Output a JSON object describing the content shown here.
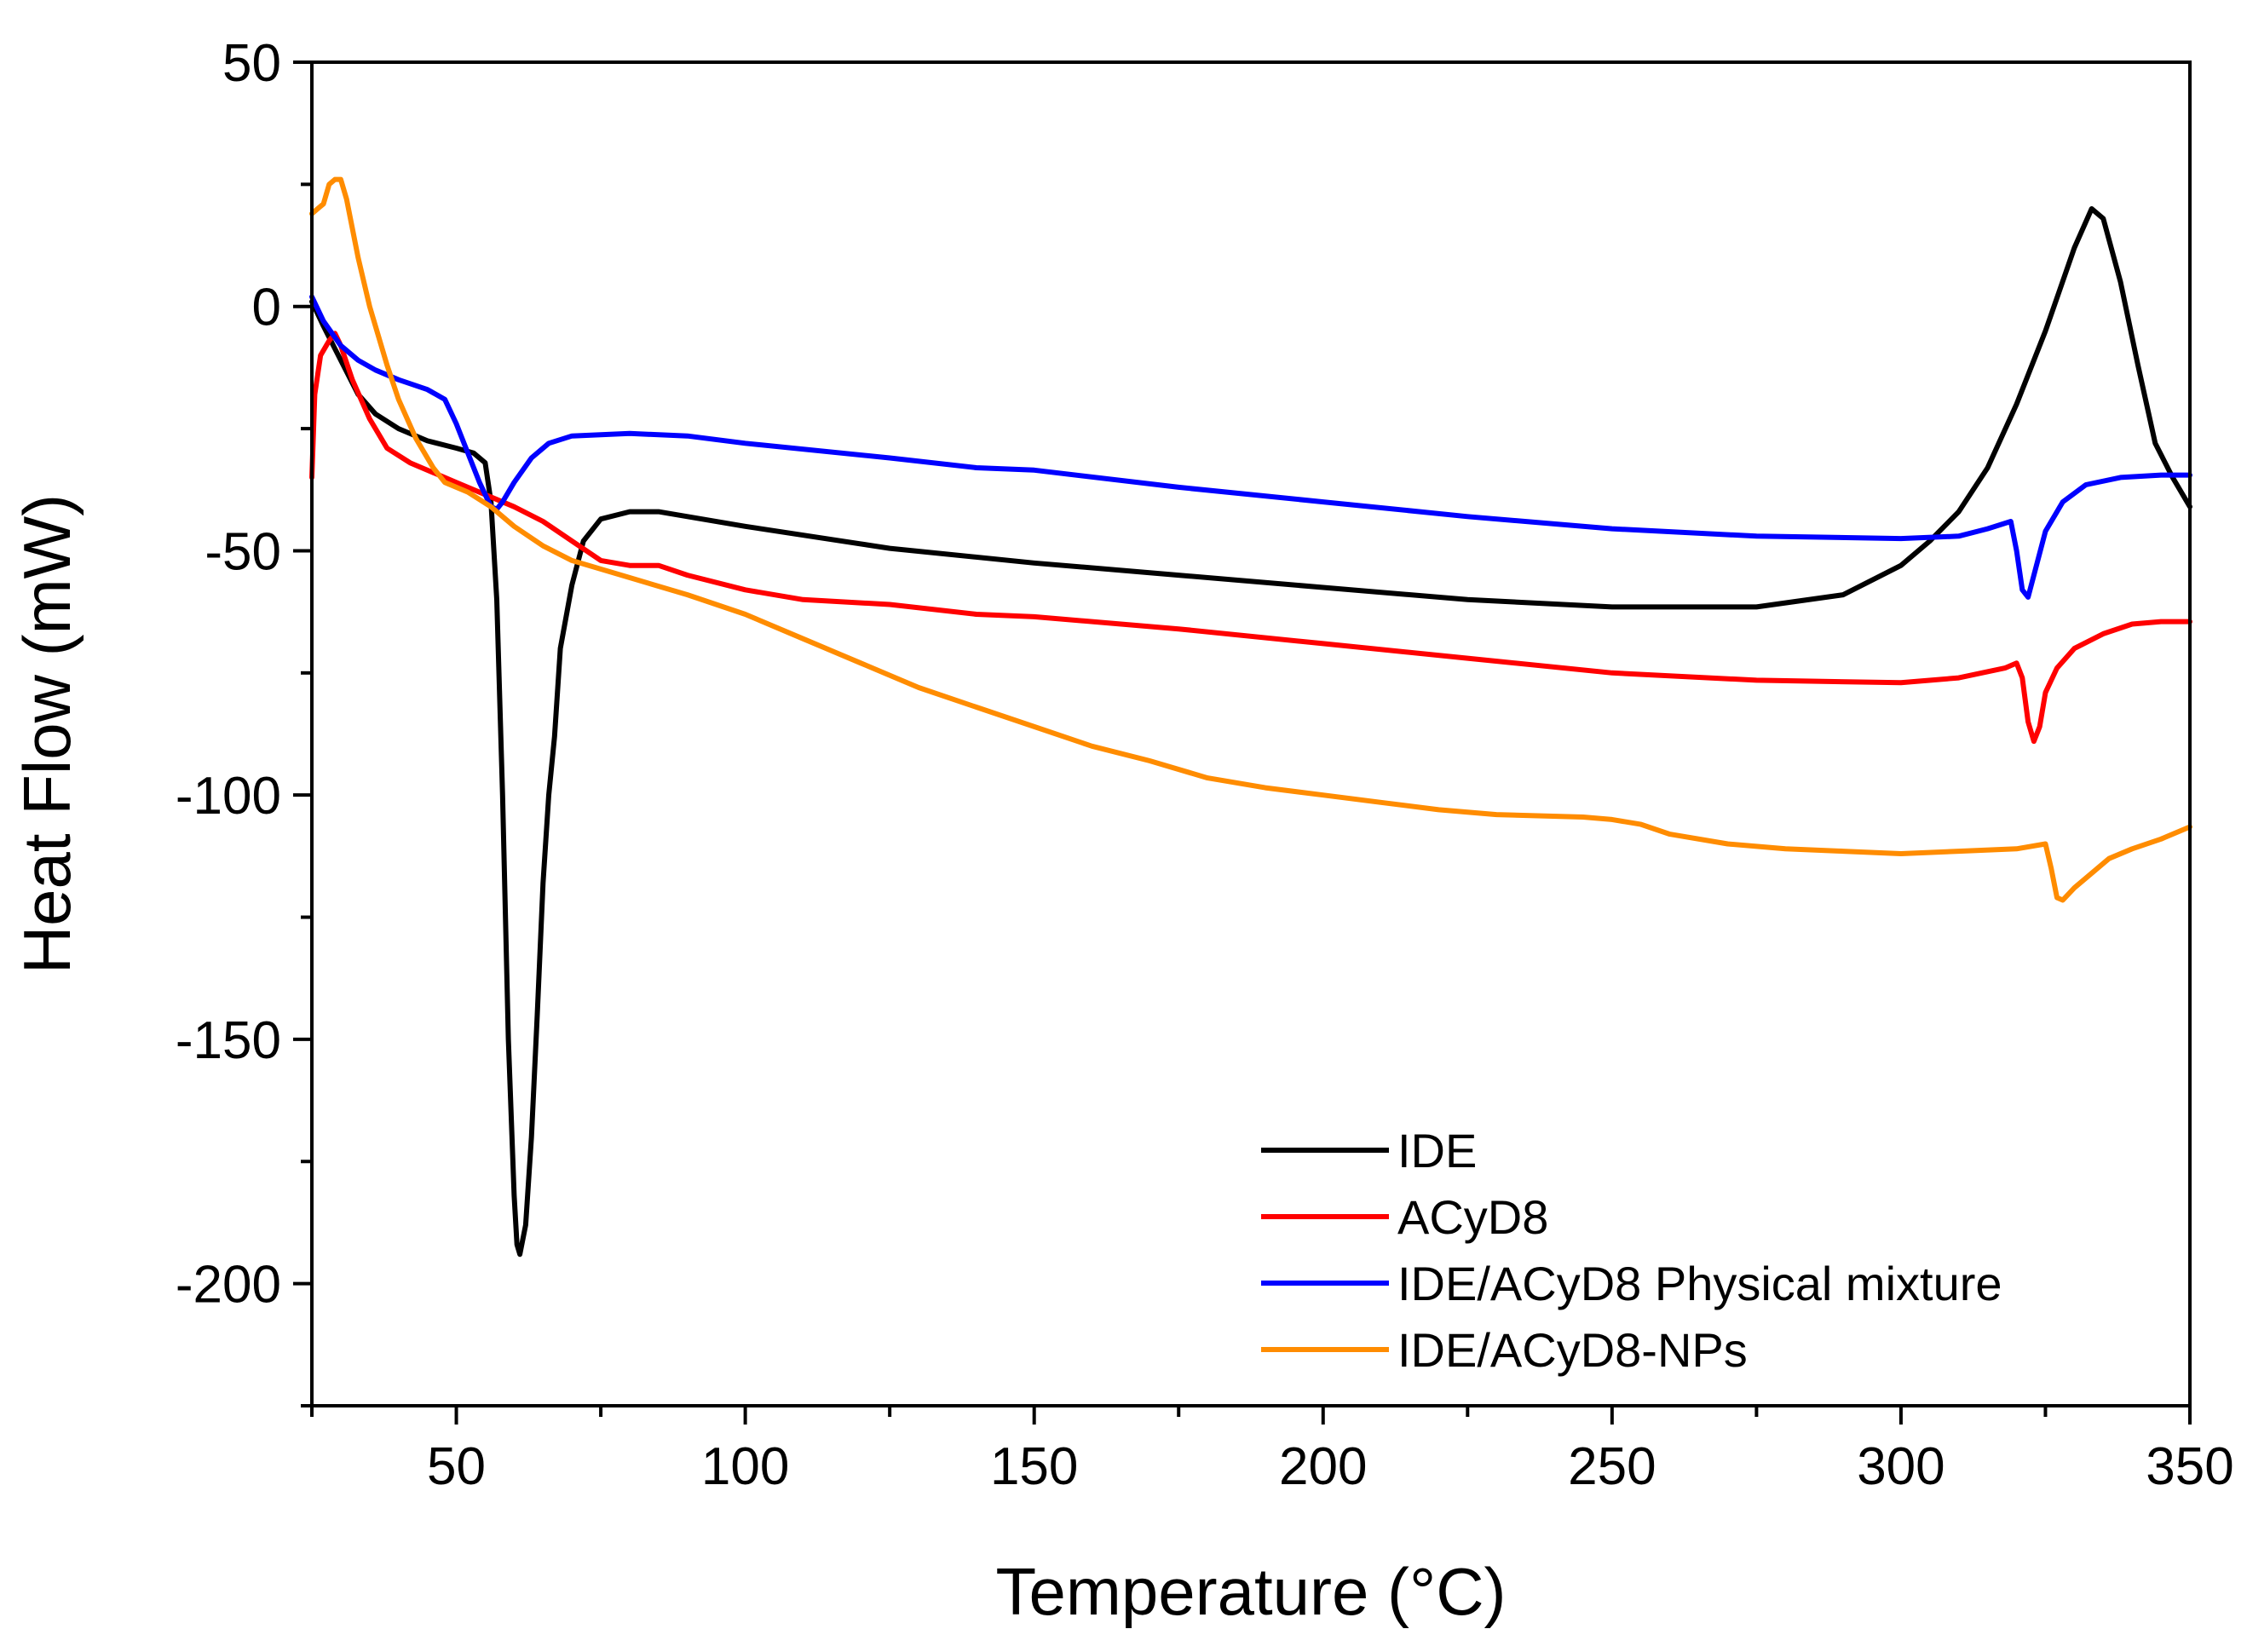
{
  "chart_data": {
    "type": "line",
    "title": "",
    "xlabel": "Temperature (°C)",
    "ylabel": "Heat Flow (mW)",
    "xlim": [
      25,
      350
    ],
    "ylim": [
      -225,
      50
    ],
    "xticks": [
      50,
      100,
      150,
      200,
      250,
      300,
      350
    ],
    "xtick_labels": [
      "50",
      "100",
      "150",
      "200",
      "250",
      "300",
      "350"
    ],
    "yticks": [
      50,
      0,
      -50,
      -100,
      -150,
      -200
    ],
    "ytick_labels": [
      "50",
      "0",
      "-50",
      "-100",
      "-150",
      "-200"
    ],
    "grid": false,
    "legend_position": "bottom-right",
    "series": [
      {
        "name": "IDE",
        "color": "#000000",
        "points": [
          [
            25,
            1
          ],
          [
            27,
            -4
          ],
          [
            30,
            -11
          ],
          [
            33,
            -18
          ],
          [
            36,
            -22
          ],
          [
            40,
            -25
          ],
          [
            45,
            -27.5
          ],
          [
            50,
            -29
          ],
          [
            53,
            -30
          ],
          [
            55,
            -32
          ],
          [
            56,
            -40
          ],
          [
            57,
            -60
          ],
          [
            58,
            -100
          ],
          [
            59,
            -150
          ],
          [
            60,
            -182
          ],
          [
            60.5,
            -192
          ],
          [
            61,
            -194
          ],
          [
            62,
            -188
          ],
          [
            63,
            -170
          ],
          [
            64,
            -145
          ],
          [
            65,
            -118
          ],
          [
            66,
            -100
          ],
          [
            67,
            -88
          ],
          [
            68,
            -70
          ],
          [
            70,
            -57
          ],
          [
            72,
            -48
          ],
          [
            75,
            -43.5
          ],
          [
            80,
            -42
          ],
          [
            85,
            -42
          ],
          [
            90,
            -43
          ],
          [
            100,
            -45
          ],
          [
            125,
            -49.5
          ],
          [
            150,
            -52.5
          ],
          [
            175,
            -55
          ],
          [
            200,
            -57.5
          ],
          [
            225,
            -60
          ],
          [
            250,
            -61.5
          ],
          [
            275,
            -61.5
          ],
          [
            290,
            -59
          ],
          [
            300,
            -53
          ],
          [
            305,
            -48
          ],
          [
            310,
            -42
          ],
          [
            315,
            -33
          ],
          [
            320,
            -20
          ],
          [
            325,
            -5
          ],
          [
            330,
            12
          ],
          [
            333,
            20
          ],
          [
            335,
            18
          ],
          [
            338,
            5
          ],
          [
            341,
            -12
          ],
          [
            344,
            -28
          ],
          [
            347,
            -35
          ],
          [
            350,
            -41
          ]
        ]
      },
      {
        "name": "ACyD8",
        "color": "#ff0000",
        "points": [
          [
            25,
            -35
          ],
          [
            25.5,
            -18
          ],
          [
            26.5,
            -10
          ],
          [
            28,
            -7
          ],
          [
            29,
            -5.5
          ],
          [
            30,
            -8
          ],
          [
            32,
            -15
          ],
          [
            35,
            -23
          ],
          [
            38,
            -29
          ],
          [
            42,
            -32
          ],
          [
            50,
            -36
          ],
          [
            60,
            -41
          ],
          [
            65,
            -44
          ],
          [
            70,
            -48
          ],
          [
            75,
            -52
          ],
          [
            80,
            -53
          ],
          [
            85,
            -53
          ],
          [
            90,
            -55
          ],
          [
            100,
            -58
          ],
          [
            110,
            -60
          ],
          [
            125,
            -61
          ],
          [
            140,
            -63
          ],
          [
            150,
            -63.5
          ],
          [
            175,
            -66
          ],
          [
            200,
            -69
          ],
          [
            225,
            -72
          ],
          [
            250,
            -75
          ],
          [
            275,
            -76.5
          ],
          [
            300,
            -77
          ],
          [
            310,
            -76
          ],
          [
            318,
            -74
          ],
          [
            320,
            -73
          ],
          [
            321,
            -76
          ],
          [
            322,
            -85
          ],
          [
            323,
            -89
          ],
          [
            324,
            -86
          ],
          [
            325,
            -79
          ],
          [
            327,
            -74
          ],
          [
            330,
            -70
          ],
          [
            335,
            -67
          ],
          [
            340,
            -65
          ],
          [
            345,
            -64.5
          ],
          [
            350,
            -64.5
          ]
        ]
      },
      {
        "name": "IDE/ACyD8 Physical mixture",
        "color": "#0000ff",
        "points": [
          [
            25,
            2
          ],
          [
            27,
            -3
          ],
          [
            30,
            -8
          ],
          [
            33,
            -11
          ],
          [
            36,
            -13
          ],
          [
            40,
            -15
          ],
          [
            45,
            -17
          ],
          [
            48,
            -19
          ],
          [
            50,
            -24
          ],
          [
            52,
            -30
          ],
          [
            54,
            -36
          ],
          [
            56,
            -41
          ],
          [
            57,
            -41.5
          ],
          [
            58,
            -40
          ],
          [
            60,
            -36
          ],
          [
            63,
            -31
          ],
          [
            66,
            -28
          ],
          [
            70,
            -26.5
          ],
          [
            80,
            -26
          ],
          [
            90,
            -26.5
          ],
          [
            100,
            -28
          ],
          [
            125,
            -31
          ],
          [
            140,
            -33
          ],
          [
            150,
            -33.5
          ],
          [
            175,
            -37
          ],
          [
            200,
            -40
          ],
          [
            225,
            -43
          ],
          [
            250,
            -45.5
          ],
          [
            275,
            -47
          ],
          [
            300,
            -47.5
          ],
          [
            310,
            -47
          ],
          [
            315,
            -45.5
          ],
          [
            319,
            -44
          ],
          [
            320,
            -50
          ],
          [
            321,
            -58
          ],
          [
            322,
            -59.5
          ],
          [
            323,
            -55
          ],
          [
            325,
            -46
          ],
          [
            328,
            -40
          ],
          [
            332,
            -36.5
          ],
          [
            338,
            -35
          ],
          [
            345,
            -34.5
          ],
          [
            350,
            -34.5
          ]
        ]
      },
      {
        "name": "IDE/ACyD8-NPs",
        "color": "#ff8c00",
        "points": [
          [
            25,
            19
          ],
          [
            26,
            20
          ],
          [
            27,
            21
          ],
          [
            28,
            25
          ],
          [
            29,
            26
          ],
          [
            30,
            26
          ],
          [
            31,
            22
          ],
          [
            32,
            16
          ],
          [
            33,
            10
          ],
          [
            35,
            0
          ],
          [
            38,
            -12
          ],
          [
            40,
            -19
          ],
          [
            43,
            -27
          ],
          [
            46,
            -33
          ],
          [
            48,
            -36
          ],
          [
            52,
            -38
          ],
          [
            56,
            -41
          ],
          [
            60,
            -45
          ],
          [
            65,
            -49
          ],
          [
            70,
            -52
          ],
          [
            80,
            -55.5
          ],
          [
            90,
            -59
          ],
          [
            100,
            -63
          ],
          [
            110,
            -68
          ],
          [
            120,
            -73
          ],
          [
            130,
            -78
          ],
          [
            140,
            -82
          ],
          [
            150,
            -86
          ],
          [
            160,
            -90
          ],
          [
            170,
            -93
          ],
          [
            180,
            -96.5
          ],
          [
            190,
            -98.5
          ],
          [
            200,
            -100
          ],
          [
            210,
            -101.5
          ],
          [
            220,
            -103
          ],
          [
            230,
            -104
          ],
          [
            245,
            -104.5
          ],
          [
            250,
            -105
          ],
          [
            255,
            -106
          ],
          [
            260,
            -108
          ],
          [
            270,
            -110
          ],
          [
            280,
            -111
          ],
          [
            290,
            -111.5
          ],
          [
            300,
            -112
          ],
          [
            310,
            -111.5
          ],
          [
            320,
            -111
          ],
          [
            325,
            -110
          ],
          [
            326,
            -115
          ],
          [
            327,
            -121
          ],
          [
            328,
            -121.5
          ],
          [
            330,
            -119
          ],
          [
            333,
            -116
          ],
          [
            336,
            -113
          ],
          [
            340,
            -111
          ],
          [
            345,
            -109
          ],
          [
            350,
            -106.5
          ]
        ]
      }
    ]
  }
}
